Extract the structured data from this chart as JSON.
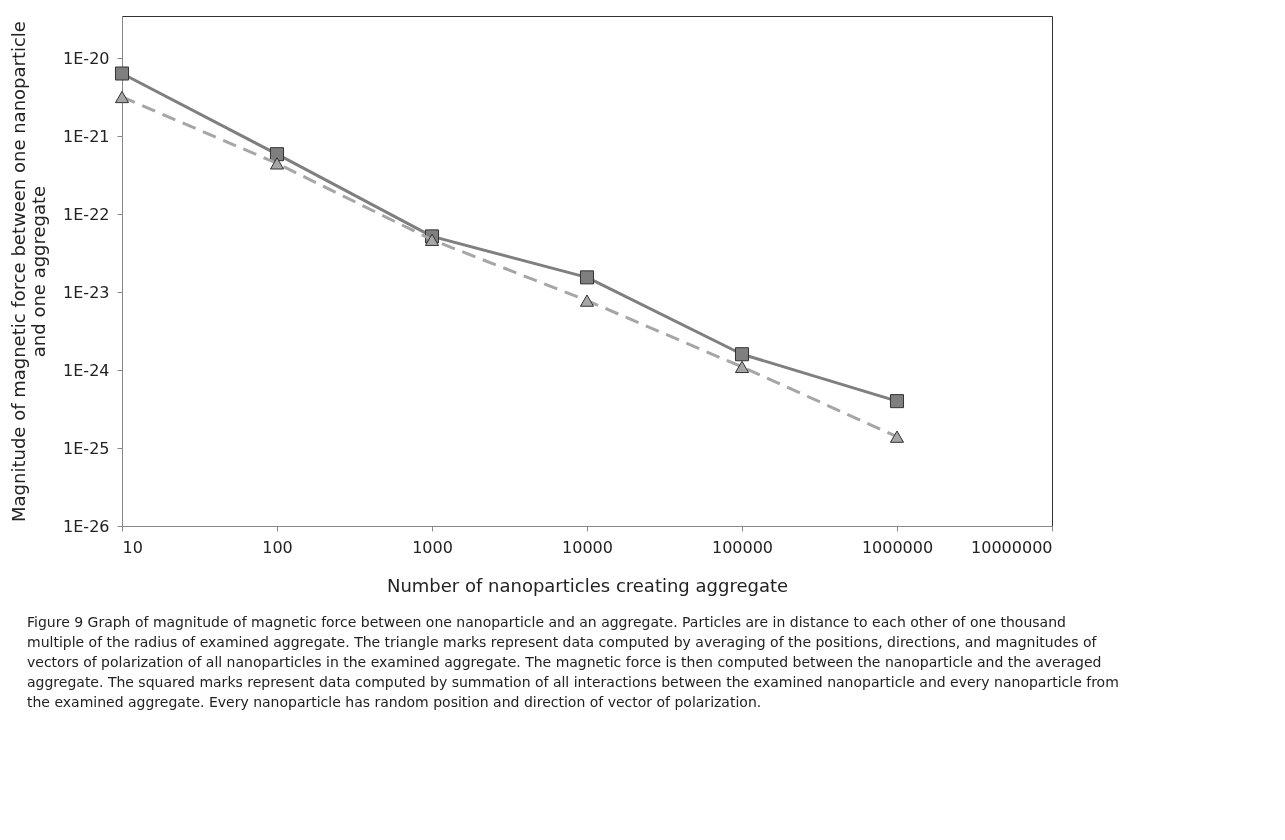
{
  "chart_data": {
    "type": "line",
    "xlabel": "Number of nanoparticles creating aggregate",
    "ylabel": "Magnitude of magnetic force between one nanoparticle and one aggregate",
    "annotations": [
      "Figure 9 Graph of magnitude of magnetic force between one nanoparticle and an aggregate. Particles are in distance to each other of one thousand multiple of the radius of examined aggregate. The triangle marks represent data computed by averaging of the positions, directions, and magnitudes of vectors of polarization of all nanoparticles in the examined aggregate. The magnetic force is then computed between the nanoparticle and the averaged aggregate. The squared marks represent data computed by summation of all interactions between the examined nanoparticle and every nanoparticle from the examined aggregate. Every nanoparticle has random position and direction of vector of polarization."
    ],
    "x": [
      10,
      100,
      1000,
      10000,
      100000,
      1000000
    ],
    "series": [
      {
        "color": "#7f7f7f",
        "marker": "square",
        "line_style": "solid",
        "values": [
          6.4e-21,
          5.9e-22,
          5.2e-23,
          1.55e-23,
          1.6e-24,
          4e-25
        ]
      },
      {
        "color": "#a6a6a6",
        "marker": "triangle",
        "line_style": "dashed",
        "values": [
          3.2e-21,
          4.5e-22,
          4.7e-23,
          7.8e-24,
          1.1e-24,
          1.4e-25
        ]
      }
    ],
    "log": "xy",
    "xlim": [
      10,
      10000000
    ],
    "xticks": [
      10,
      100,
      1000,
      10000,
      100000,
      1000000,
      10000000
    ],
    "ylim": [
      1e-26,
      3.5e-20
    ],
    "yticks": [
      {
        "value": 1e-26,
        "label": "1E-26"
      },
      {
        "value": 1e-25,
        "label": "1E-25"
      },
      {
        "value": 1e-24,
        "label": "1E-24"
      },
      {
        "value": 1e-23,
        "label": "1E-23"
      },
      {
        "value": 1e-22,
        "label": "1E-22"
      },
      {
        "value": 1e-21,
        "label": "1E-21"
      },
      {
        "value": 1e-20,
        "label": "1E-20"
      }
    ],
    "grid": false,
    "legend": false
  }
}
